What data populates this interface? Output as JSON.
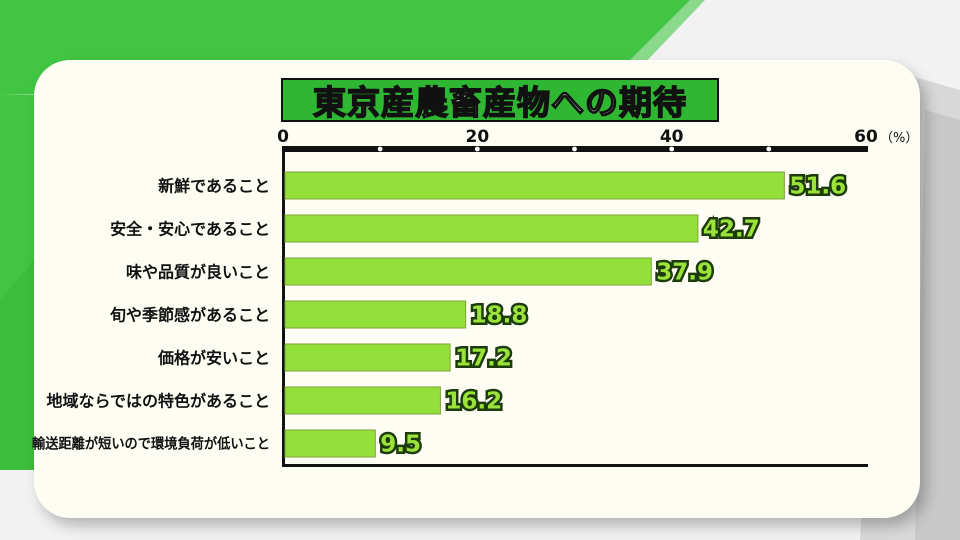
{
  "title": "東京産農畜産物への期待",
  "colors": {
    "bar": "#93e03a",
    "title_bg": "#2fb633",
    "background_green": "#3cc03c",
    "panel": "#fdfdf4"
  },
  "chart_data": {
    "type": "bar",
    "orientation": "horizontal",
    "title": "東京産農畜産物への期待",
    "categories": [
      "新鮮であること",
      "安全・安心であること",
      "味や品質が良いこと",
      "旬や季節感があること",
      "価格が安いこと",
      "地域ならではの特色があること",
      "輸送距離が短いので環境負荷が低いこと"
    ],
    "values": [
      51.6,
      42.7,
      37.9,
      18.8,
      17.2,
      16.2,
      9.5
    ],
    "value_labels": [
      "51.6",
      "42.7",
      "37.9",
      "18.8",
      "17.2",
      "16.2",
      "9.5"
    ],
    "xlim": [
      0,
      60
    ],
    "major_ticks": [
      0,
      20,
      40,
      60
    ],
    "tick_labels": [
      "0",
      "20",
      "40",
      "60"
    ],
    "minor_ticks": [
      10,
      30,
      50
    ],
    "unit": "（%）",
    "xlabel": "",
    "ylabel": "",
    "grid": false,
    "legend": "none"
  }
}
